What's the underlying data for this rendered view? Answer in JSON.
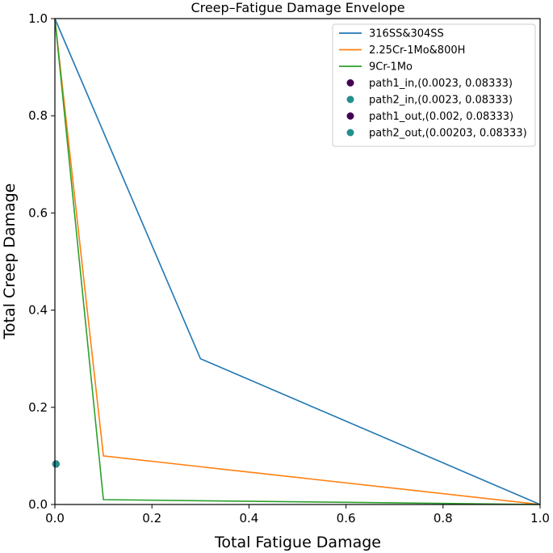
{
  "chart_data": {
    "type": "line",
    "title": "Creep–Fatigue Damage Envelope",
    "xlabel": "Total Fatigue Damage",
    "ylabel": "Total Creep Damage",
    "xlim": [
      0,
      1
    ],
    "ylim": [
      0,
      1
    ],
    "xticks": [
      "0.0",
      "0.2",
      "0.4",
      "0.6",
      "0.8",
      "1.0"
    ],
    "yticks": [
      "0.0",
      "0.2",
      "0.4",
      "0.6",
      "0.8",
      "1.0"
    ],
    "grid": false,
    "legend_position": "top-right",
    "series": [
      {
        "name": "316SS&304SS",
        "kind": "line",
        "color": "#1f77b4",
        "x": [
          0,
          0.3,
          1
        ],
        "y": [
          1,
          0.3,
          0
        ]
      },
      {
        "name": "2.25Cr-1Mo&800H",
        "kind": "line",
        "color": "#ff7f0e",
        "x": [
          0,
          0.1,
          1
        ],
        "y": [
          1,
          0.1,
          0
        ]
      },
      {
        "name": "9Cr-1Mo",
        "kind": "line",
        "color": "#2ca02c",
        "x": [
          0,
          0.1,
          1
        ],
        "y": [
          1,
          0.01,
          0
        ]
      },
      {
        "name": "path1_in,(0.0023, 0.08333)",
        "kind": "point",
        "color": "#440154",
        "x": [
          0.0023
        ],
        "y": [
          0.08333
        ]
      },
      {
        "name": "path2_in,(0.0023, 0.08333)",
        "kind": "point",
        "color": "#21918c",
        "x": [
          0.0023
        ],
        "y": [
          0.08333
        ]
      },
      {
        "name": "path1_out,(0.002, 0.08333)",
        "kind": "point",
        "color": "#440154",
        "x": [
          0.002
        ],
        "y": [
          0.08333
        ]
      },
      {
        "name": "path2_out,(0.00203, 0.08333)",
        "kind": "point",
        "color": "#21918c",
        "x": [
          0.00203
        ],
        "y": [
          0.08333
        ]
      }
    ]
  }
}
